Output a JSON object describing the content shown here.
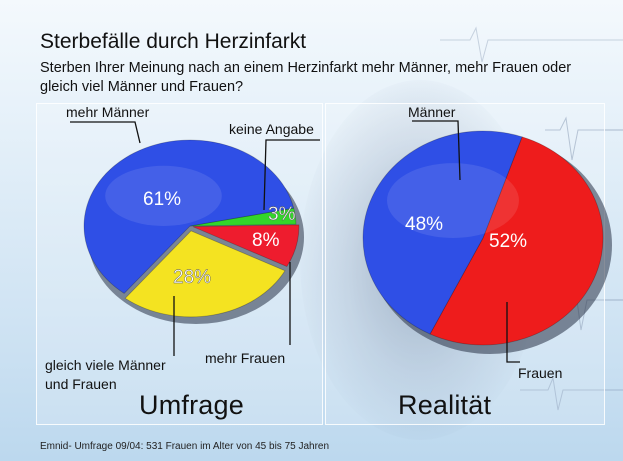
{
  "title": "Sterbefälle durch Herzinfarkt",
  "subtitle": "Sterben Ihrer Meinung nach an einem Herzinfarkt mehr Männer, mehr Frauen oder gleich viel Männer und Frauen?",
  "source": "Emnid- Umfrage 09/04: 531 Frauen im Alter von 45 bis 75 Jahren",
  "chart_data": [
    {
      "type": "pie",
      "title": "Umfrage",
      "labels": [
        "mehr Männer",
        "keine Angabe",
        "mehr Frauen",
        "gleich viele Männer und Frauen"
      ],
      "values": [
        61,
        3,
        8,
        28
      ],
      "value_labels": [
        "61%",
        "3%",
        "8%",
        "28%"
      ],
      "colors": [
        "#2f4fe6",
        "#33d62a",
        "#ee1c2e",
        "#f4e321"
      ]
    },
    {
      "type": "pie",
      "title": "Realität",
      "labels": [
        "Männer",
        "Frauen"
      ],
      "values": [
        48,
        52
      ],
      "value_labels": [
        "48%",
        "52%"
      ],
      "colors": [
        "#2f4fe6",
        "#ee1c1c"
      ]
    }
  ]
}
